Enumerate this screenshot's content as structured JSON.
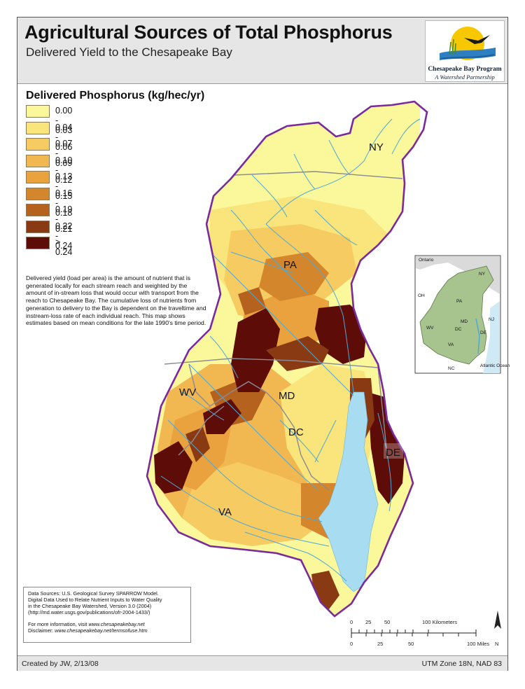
{
  "header": {
    "title": "Agricultural Sources of Total Phosphorus",
    "subtitle": "Delivered Yield to the Chesapeake Bay",
    "logo_name": "Chesapeake Bay Program",
    "logo_tagline": "A Watershed Partnership"
  },
  "legend": {
    "title": "Delivered Phosphorus (kg/hec/yr)",
    "classes": [
      {
        "label": "0.00 - 0.03",
        "color": "#fbf79b"
      },
      {
        "label": "0.04 - 0.06",
        "color": "#f9e57b"
      },
      {
        "label": "0.07 - 0.09",
        "color": "#f6cc62"
      },
      {
        "label": "0.10 - 0.12",
        "color": "#f1b851"
      },
      {
        "label": "0.13 - 0.15",
        "color": "#e9a23d"
      },
      {
        "label": "0.16 - 0.18",
        "color": "#d4862d"
      },
      {
        "label": "0.19 - 0.21",
        "color": "#b4621d"
      },
      {
        "label": "0.22 - 0.24",
        "color": "#8a3a12"
      },
      {
        "label": "> 0.24",
        "color": "#5e0c08"
      }
    ]
  },
  "description": "Delivered yield (load per area) is the amount of nutrient that is generated locally for each stream reach and weighted by the amount of in-stream loss that would occur with transport from the reach to Chesapeake Bay. The cumulative loss of nutrients from generation to delivery to the Bay is dependent on the traveltime and instream-loss rate of each individual reach.  This map shows estimates based on mean conditions for the late 1990's time period.",
  "states": [
    "NY",
    "PA",
    "WV",
    "MD",
    "DC",
    "DE",
    "VA"
  ],
  "inset": {
    "labels": [
      "Ontario",
      "NY",
      "PA",
      "OH",
      "MD",
      "NJ",
      "WV",
      "DC",
      "DE",
      "VA",
      "NC",
      "Atlantic Ocean"
    ]
  },
  "sources": {
    "line1": "Data Sources:  U.S. Geological Survey SPARROW Model.",
    "line2": "Digital Data Used to Relate Nutrient Inputs to Water Quality",
    "line3": "in the Chesapeake Bay Watershed, Version 3.0 (2004)",
    "line4": "(http://md.water.usgs.gov/publications/ofr-2004-1433/)",
    "info_prefix": "For more information, visit ",
    "info_link": "www.chesapeakebay.net",
    "disclaimer_prefix": "Disclaimer: ",
    "disclaimer_link": "www.chesapeakebay.net/termsofuse.htm"
  },
  "scale": {
    "km_ticks": [
      "0",
      "25",
      "50",
      "100 Kilometers"
    ],
    "mile_ticks": [
      "0",
      "25",
      "50",
      "100 Miles"
    ],
    "north": "N"
  },
  "footer": {
    "created": "Created by JW, 2/13/08",
    "projection": "UTM Zone 18N, NAD 83"
  },
  "colors": {
    "watershed_outline": "#7a2a9a",
    "state_lines": "#8a8a96",
    "water": "#a8dcf0",
    "rivers": "#4ea8d6",
    "header_bg": "#e6e6e6"
  }
}
